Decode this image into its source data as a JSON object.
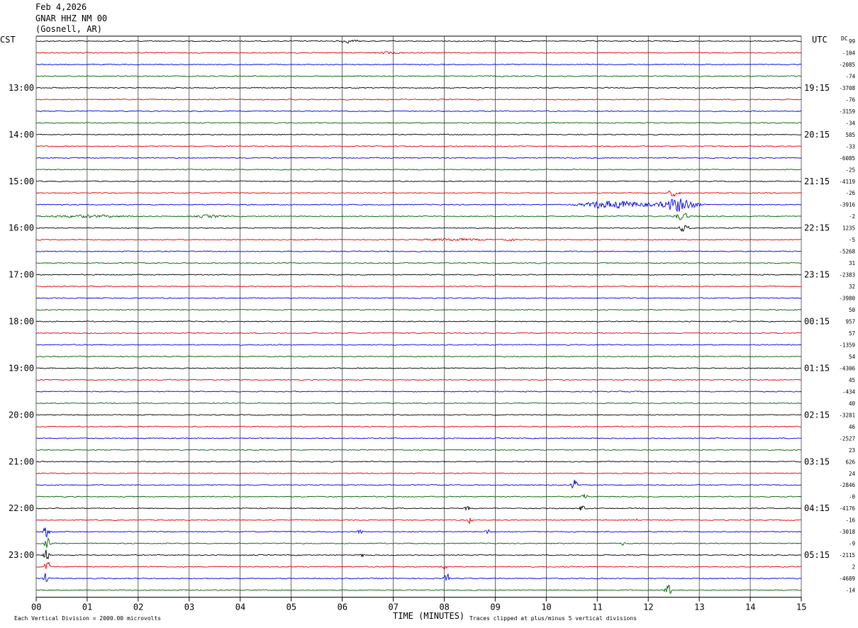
{
  "header": {
    "date": "Feb 4,2026",
    "station": "GNAR HHZ NM 00",
    "location": "(Gosnell, AR)"
  },
  "labels": {
    "left_tz": "CST",
    "right_tz": "UTC",
    "dc": "DC",
    "xlabel": "TIME (MINUTES)",
    "scale_note": "Each Vertical Division = 2000.00 microvolts",
    "clip_note": "Traces clipped at plus/minus 5 vertical divisions"
  },
  "colors": {
    "trace_cycle": [
      "#000000",
      "#e00000",
      "#0000e0",
      "#006000"
    ],
    "grid": "#000000",
    "background": "#ffffff"
  },
  "chart_data": {
    "type": "line",
    "title": "",
    "x_ticks": [
      "00",
      "01",
      "02",
      "03",
      "04",
      "05",
      "06",
      "07",
      "08",
      "09",
      "10",
      "11",
      "12",
      "13",
      "14",
      "15"
    ],
    "xlim": [
      0,
      15
    ],
    "x_unit": "minutes",
    "trace_count": 48,
    "trace_interval_minutes": 15,
    "left_hour_labels": [
      "13:00",
      "14:00",
      "15:00",
      "16:00",
      "17:00",
      "18:00",
      "19:00",
      "20:00",
      "21:00",
      "22:00",
      "23:00"
    ],
    "right_hour_labels": [
      "19:15",
      "20:15",
      "21:15",
      "22:15",
      "23:15",
      "00:15",
      "01:15",
      "02:15",
      "03:15",
      "04:15",
      "05:15"
    ],
    "dc_offsets": [
      "99",
      "-104",
      "-2085",
      "-74",
      "-3708",
      "-76",
      "-3159",
      "-34",
      "585",
      "-33",
      "-6085",
      "-25",
      "-4119",
      "-26",
      "-3916",
      "-2",
      "1235",
      "-5",
      "-5268",
      "31",
      "-2383",
      "32",
      "-3980",
      "50",
      "957",
      "57",
      "-1359",
      "54",
      "-4306",
      "45",
      "-434",
      "40",
      "-3281",
      "46",
      "-2527",
      "23",
      "626",
      "24",
      "-2846",
      "-0",
      "-4176",
      "-16",
      "-3018",
      "-9",
      "-2115",
      "2",
      "-4689",
      "-14"
    ],
    "events": [
      {
        "trace": 0,
        "minute": 6.1,
        "amp": 0.45,
        "dur": 0.3
      },
      {
        "trace": 1,
        "minute": 6.9,
        "amp": 0.3,
        "dur": 0.4
      },
      {
        "trace": 13,
        "minute": 12.5,
        "amp": 1.4,
        "dur": 0.15
      },
      {
        "trace": 14,
        "minute": 12.6,
        "amp": 2.6,
        "dur": 0.5
      },
      {
        "trace": 15,
        "minute": 12.65,
        "amp": 1.4,
        "dur": 0.2
      },
      {
        "trace": 16,
        "minute": 12.7,
        "amp": 1.2,
        "dur": 0.15
      },
      {
        "trace": 14,
        "minute": 11.5,
        "amp": 1.3,
        "dur": 0.8
      },
      {
        "trace": 14,
        "minute": 11.0,
        "amp": 0.6,
        "dur": 0.6
      },
      {
        "trace": 15,
        "minute": 1.0,
        "amp": 0.4,
        "dur": 1.2
      },
      {
        "trace": 15,
        "minute": 3.4,
        "amp": 0.45,
        "dur": 0.4
      },
      {
        "trace": 17,
        "minute": 8.2,
        "amp": 0.4,
        "dur": 0.8
      },
      {
        "trace": 17,
        "minute": 9.3,
        "amp": 0.3,
        "dur": 0.2
      },
      {
        "trace": 38,
        "minute": 10.55,
        "amp": 2.0,
        "dur": 0.08
      },
      {
        "trace": 39,
        "minute": 10.75,
        "amp": 1.8,
        "dur": 0.08
      },
      {
        "trace": 40,
        "minute": 10.7,
        "amp": 1.4,
        "dur": 0.08
      },
      {
        "trace": 40,
        "minute": 8.45,
        "amp": 1.6,
        "dur": 0.06
      },
      {
        "trace": 41,
        "minute": 8.5,
        "amp": 1.4,
        "dur": 0.06
      },
      {
        "trace": 42,
        "minute": 8.85,
        "amp": 1.2,
        "dur": 0.06
      },
      {
        "trace": 42,
        "minute": 0.2,
        "amp": 2.5,
        "dur": 0.08
      },
      {
        "trace": 43,
        "minute": 0.22,
        "amp": 2.4,
        "dur": 0.08
      },
      {
        "trace": 44,
        "minute": 0.2,
        "amp": 2.3,
        "dur": 0.08
      },
      {
        "trace": 45,
        "minute": 0.22,
        "amp": 2.2,
        "dur": 0.08
      },
      {
        "trace": 46,
        "minute": 0.2,
        "amp": 2.0,
        "dur": 0.08
      },
      {
        "trace": 47,
        "minute": 12.4,
        "amp": 2.6,
        "dur": 0.1
      },
      {
        "trace": 46,
        "minute": 8.05,
        "amp": 1.8,
        "dur": 0.08
      },
      {
        "trace": 45,
        "minute": 8.0,
        "amp": 1.3,
        "dur": 0.08
      },
      {
        "trace": 44,
        "minute": 6.4,
        "amp": 0.8,
        "dur": 0.06
      },
      {
        "trace": 42,
        "minute": 6.35,
        "amp": 1.2,
        "dur": 0.06
      },
      {
        "trace": 41,
        "minute": 11.8,
        "amp": 0.6,
        "dur": 0.06
      },
      {
        "trace": 43,
        "minute": 11.5,
        "amp": 0.7,
        "dur": 0.06
      }
    ]
  }
}
